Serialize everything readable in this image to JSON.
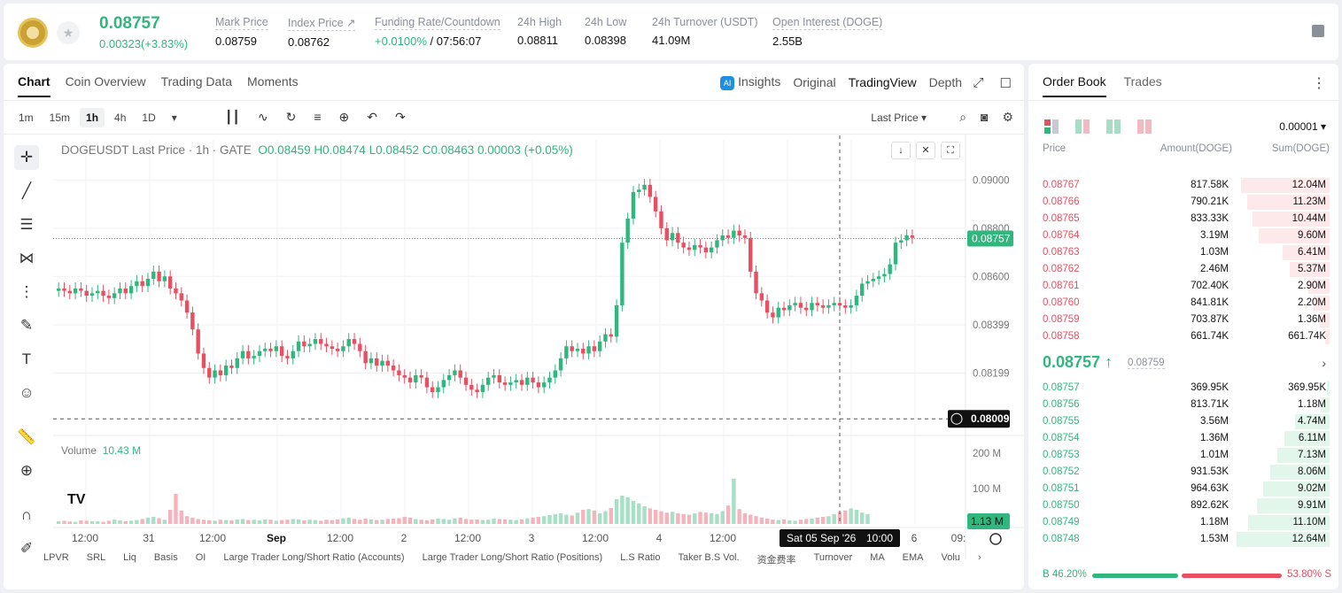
{
  "header": {
    "price": "0.08757",
    "change": "0.00323(+3.83%)",
    "stats": [
      {
        "label": "Mark Price",
        "value": "0.08759"
      },
      {
        "label": "Index Price ↗",
        "value": "0.08762"
      },
      {
        "label": "Funding Rate/Countdown",
        "value_green": "+0.0100%",
        "value": " / 07:56:07"
      },
      {
        "label": "24h High",
        "value": "0.08811"
      },
      {
        "label": "24h Low",
        "value": "0.08398"
      },
      {
        "label": "24h Turnover (USDT)",
        "value": "41.09M"
      },
      {
        "label": "Open Interest (DOGE)",
        "value": "2.55B"
      }
    ]
  },
  "chart_panel": {
    "tabs": [
      "Chart",
      "Coin Overview",
      "Trading Data",
      "Moments"
    ],
    "view_tabs": [
      "Insights",
      "Original",
      "TradingView",
      "Depth"
    ],
    "ai_badge": "AI",
    "intervals": [
      "1m",
      "15m",
      "1h",
      "4h",
      "1D"
    ],
    "last_price_select": "Last Price",
    "legend": {
      "symbol": "DOGEUSDT Last Price · 1h · GATE",
      "ohlc": "O0.08459  H0.08474  L0.08452  C0.08463  0.00003  (+0.05%)"
    },
    "volume_label": "Volume",
    "volume_value": "10.43 M",
    "tv_logo": "TV",
    "bottom_tabs": [
      "LPVR",
      "SRL",
      "Liq",
      "Basis",
      "OI",
      "Large Trader Long/Short Ratio (Accounts)",
      "Large Trader Long/Short Ratio (Positions)",
      "L.S Ratio",
      "Taker B.S Vol.",
      "资金费率",
      "Turnover",
      "MA",
      "EMA",
      "Volu"
    ]
  },
  "chart_data": {
    "type": "candlestick",
    "price_ticks": [
      "0.09000",
      "0.08800",
      "0.08600",
      "0.08399",
      "0.08199"
    ],
    "price_tick_values": [
      0.09,
      0.088,
      0.086,
      0.08399,
      0.08199
    ],
    "volume_ticks": [
      "200 M",
      "100 M"
    ],
    "volume_tick_values": [
      200,
      100
    ],
    "time_labels": [
      "12:00",
      "31",
      "12:00",
      "Sep",
      "12:00",
      "2",
      "12:00",
      "3",
      "12:00",
      "4",
      "12:00",
      "6",
      "09:"
    ],
    "last_price": "0.08757",
    "last_price_value": 0.08757,
    "crosshair_price": "0.08009",
    "crosshair_price_value": 0.08009,
    "crosshair_time": "Sat 05 Sep '26",
    "crosshair_hour": "10:00",
    "current_volume": "1.13 M",
    "closes": [
      0.0855,
      0.0854,
      0.0853,
      0.0855,
      0.0854,
      0.0852,
      0.0853,
      0.0854,
      0.0852,
      0.0851,
      0.0853,
      0.0855,
      0.0853,
      0.0856,
      0.0858,
      0.0856,
      0.0859,
      0.0862,
      0.0858,
      0.086,
      0.0855,
      0.0853,
      0.085,
      0.0845,
      0.0838,
      0.0828,
      0.0822,
      0.0818,
      0.0821,
      0.0819,
      0.0823,
      0.0822,
      0.0826,
      0.0829,
      0.0826,
      0.0827,
      0.0829,
      0.083,
      0.0829,
      0.0831,
      0.0827,
      0.0826,
      0.0829,
      0.0833,
      0.0831,
      0.0832,
      0.0834,
      0.0832,
      0.0831,
      0.083,
      0.0829,
      0.0831,
      0.0834,
      0.0832,
      0.0829,
      0.0824,
      0.0826,
      0.0823,
      0.0825,
      0.0823,
      0.0821,
      0.0819,
      0.0818,
      0.0816,
      0.0819,
      0.0818,
      0.0814,
      0.0812,
      0.0814,
      0.0817,
      0.0819,
      0.0821,
      0.0818,
      0.0815,
      0.0813,
      0.0812,
      0.0815,
      0.0818,
      0.0819,
      0.0816,
      0.0815,
      0.0816,
      0.0817,
      0.0815,
      0.0818,
      0.0816,
      0.0814,
      0.0816,
      0.0818,
      0.0821,
      0.0826,
      0.0831,
      0.0829,
      0.083,
      0.0828,
      0.0831,
      0.0829,
      0.0833,
      0.0836,
      0.0835,
      0.0848,
      0.0874,
      0.0884,
      0.0895,
      0.0896,
      0.0898,
      0.0893,
      0.0887,
      0.088,
      0.0875,
      0.0878,
      0.0874,
      0.0872,
      0.0871,
      0.0873,
      0.0872,
      0.087,
      0.0872,
      0.0875,
      0.0877,
      0.0876,
      0.0879,
      0.0877,
      0.0876,
      0.0862,
      0.0853,
      0.085,
      0.0845,
      0.0843,
      0.0847,
      0.0846,
      0.0848,
      0.0849,
      0.0847,
      0.0846,
      0.0849,
      0.0848,
      0.0847,
      0.0848,
      0.0849,
      0.0848,
      0.0847,
      0.0848,
      0.0852,
      0.0857,
      0.0858,
      0.0859,
      0.086,
      0.0861,
      0.0865,
      0.0874,
      0.0875,
      0.0877,
      0.0876
    ],
    "volumes": [
      8,
      9,
      7,
      6,
      10,
      9,
      8,
      7,
      6,
      9,
      12,
      10,
      8,
      9,
      11,
      14,
      18,
      20,
      16,
      12,
      40,
      85,
      38,
      22,
      18,
      14,
      12,
      10,
      9,
      12,
      11,
      10,
      13,
      14,
      11,
      12,
      10,
      13,
      12,
      9,
      11,
      12,
      14,
      13,
      10,
      12,
      11,
      9,
      12,
      11,
      13,
      16,
      18,
      14,
      12,
      15,
      13,
      11,
      12,
      14,
      15,
      16,
      20,
      18,
      14,
      12,
      10,
      13,
      15,
      14,
      12,
      16,
      18,
      14,
      12,
      13,
      11,
      12,
      15,
      14,
      13,
      12,
      11,
      13,
      16,
      18,
      20,
      22,
      25,
      28,
      30,
      26,
      24,
      32,
      40,
      42,
      38,
      30,
      36,
      45,
      70,
      80,
      75,
      65,
      58,
      50,
      44,
      40,
      36,
      32,
      34,
      30,
      28,
      26,
      30,
      34,
      32,
      30,
      28,
      36,
      52,
      128,
      42,
      30,
      26,
      22,
      18,
      15,
      12,
      11,
      13,
      10,
      9,
      12,
      14,
      15,
      18,
      20,
      22,
      28,
      34,
      38,
      44,
      40,
      32,
      28
    ]
  },
  "orderbook": {
    "tabs": [
      "Order Book",
      "Trades"
    ],
    "precision": "0.00001",
    "headers": {
      "price": "Price",
      "amount": "Amount(DOGE)",
      "sum": "Sum(DOGE)"
    },
    "asks": [
      {
        "price": "0.08767",
        "amount": "817.58K",
        "sum": "12.04M",
        "depth": 0.952
      },
      {
        "price": "0.08766",
        "amount": "790.21K",
        "sum": "11.23M",
        "depth": 0.888
      },
      {
        "price": "0.08765",
        "amount": "833.33K",
        "sum": "10.44M",
        "depth": 0.826
      },
      {
        "price": "0.08764",
        "amount": "3.19M",
        "sum": "9.60M",
        "depth": 0.759
      },
      {
        "price": "0.08763",
        "amount": "1.03M",
        "sum": "6.41M",
        "depth": 0.507
      },
      {
        "price": "0.08762",
        "amount": "2.46M",
        "sum": "5.37M",
        "depth": 0.425
      },
      {
        "price": "0.08761",
        "amount": "702.40K",
        "sum": "2.90M",
        "depth": 0.229
      },
      {
        "price": "0.08760",
        "amount": "841.81K",
        "sum": "2.20M",
        "depth": 0.174
      },
      {
        "price": "0.08759",
        "amount": "703.87K",
        "sum": "1.36M",
        "depth": 0.108
      },
      {
        "price": "0.08758",
        "amount": "661.74K",
        "sum": "661.74K",
        "depth": 0.052
      }
    ],
    "mid_price": "0.08757 ↑",
    "mid_mark": "0.08759",
    "bids": [
      {
        "price": "0.08757",
        "amount": "369.95K",
        "sum": "369.95K",
        "depth": 0.029
      },
      {
        "price": "0.08756",
        "amount": "813.71K",
        "sum": "1.18M",
        "depth": 0.093
      },
      {
        "price": "0.08755",
        "amount": "3.56M",
        "sum": "4.74M",
        "depth": 0.375
      },
      {
        "price": "0.08754",
        "amount": "1.36M",
        "sum": "6.11M",
        "depth": 0.483
      },
      {
        "price": "0.08753",
        "amount": "1.01M",
        "sum": "7.13M",
        "depth": 0.564
      },
      {
        "price": "0.08752",
        "amount": "931.53K",
        "sum": "8.06M",
        "depth": 0.637
      },
      {
        "price": "0.08751",
        "amount": "964.63K",
        "sum": "9.02M",
        "depth": 0.713
      },
      {
        "price": "0.08750",
        "amount": "892.62K",
        "sum": "9.91M",
        "depth": 0.784
      },
      {
        "price": "0.08749",
        "amount": "1.18M",
        "sum": "11.10M",
        "depth": 0.878
      },
      {
        "price": "0.08748",
        "amount": "1.53M",
        "sum": "12.64M",
        "depth": 1.0
      }
    ],
    "buy_ratio": "B 46.20%",
    "sell_ratio": "53.80% S",
    "buy_ratio_value": 0.462,
    "colors": {
      "up": "#2fb77e",
      "down": "#e84f61"
    }
  }
}
